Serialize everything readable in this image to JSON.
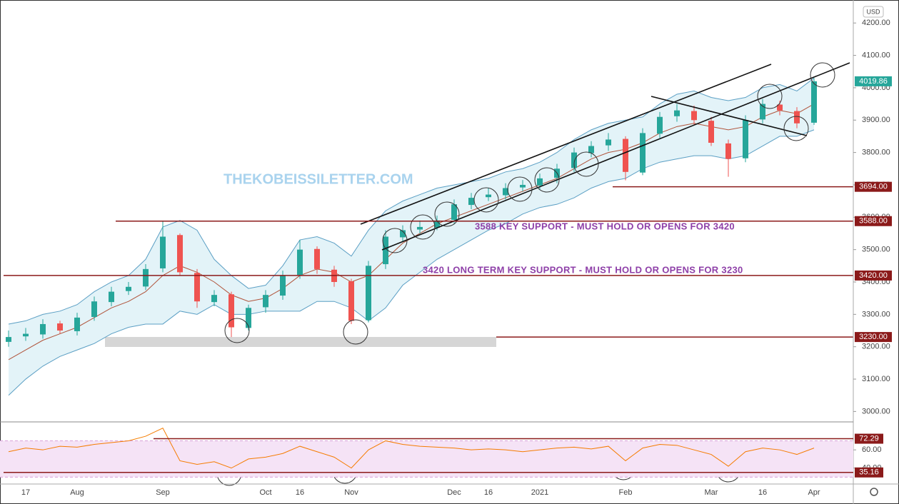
{
  "chart_data": {
    "type": "candlestick",
    "currency": "USD",
    "watermark": "THEKOBEISSILETTER.COM",
    "categories": [
      null,
      "17",
      null,
      null,
      "Aug",
      null,
      null,
      null,
      null,
      "Sep",
      null,
      null,
      null,
      null,
      null,
      "Oct",
      null,
      "16",
      null,
      null,
      "Nov",
      null,
      null,
      null,
      null,
      null,
      "Dec",
      null,
      "16",
      null,
      null,
      "2021",
      null,
      null,
      null,
      null,
      "Feb",
      null,
      null,
      null,
      null,
      "Mar",
      null,
      null,
      "16",
      null,
      null,
      "Apr"
    ],
    "open": [
      3215,
      3232,
      3238,
      3272,
      3248,
      3292,
      3338,
      3372,
      3386,
      3442,
      3545,
      3428,
      3338,
      3362,
      3258,
      3322,
      3358,
      3422,
      3502,
      3438,
      3402,
      3282,
      3455,
      3538,
      3562,
      3568,
      3592,
      3638,
      3662,
      3668,
      3692,
      3698,
      3722,
      3752,
      3798,
      3822,
      3842,
      3738,
      3858,
      3912,
      3928,
      3898,
      3828,
      3782,
      3902,
      3948,
      3928,
      3892
    ],
    "high": [
      3250,
      3258,
      3285,
      3280,
      3305,
      3355,
      3385,
      3400,
      3455,
      3588,
      3550,
      3440,
      3375,
      3370,
      3330,
      3375,
      3435,
      3530,
      3510,
      3450,
      3410,
      3465,
      3560,
      3575,
      3590,
      3605,
      3655,
      3675,
      3690,
      3705,
      3715,
      3735,
      3765,
      3815,
      3835,
      3860,
      3850,
      3875,
      3925,
      3950,
      3945,
      3910,
      3840,
      3915,
      3965,
      3960,
      3940,
      4030
    ],
    "low": [
      3200,
      3218,
      3225,
      3240,
      3235,
      3280,
      3325,
      3360,
      3375,
      3430,
      3420,
      3320,
      3325,
      3230,
      3250,
      3305,
      3345,
      3410,
      3425,
      3385,
      3270,
      3275,
      3440,
      3525,
      3550,
      3560,
      3580,
      3625,
      3650,
      3655,
      3680,
      3685,
      3705,
      3740,
      3785,
      3805,
      3714,
      3730,
      3845,
      3895,
      3885,
      3820,
      3725,
      3770,
      3890,
      3915,
      3875,
      3885
    ],
    "close": [
      3230,
      3240,
      3270,
      3250,
      3290,
      3340,
      3370,
      3385,
      3440,
      3540,
      3430,
      3340,
      3360,
      3260,
      3320,
      3360,
      3420,
      3500,
      3440,
      3400,
      3280,
      3450,
      3540,
      3560,
      3570,
      3590,
      3640,
      3660,
      3670,
      3690,
      3700,
      3720,
      3750,
      3800,
      3820,
      3840,
      3740,
      3860,
      3910,
      3930,
      3900,
      3830,
      3780,
      3900,
      3950,
      3930,
      3890,
      4019.86
    ],
    "up_color": "#26a69a",
    "down_color": "#ef5350",
    "bollinger": {
      "upper": [
        3270,
        3280,
        3300,
        3310,
        3330,
        3370,
        3400,
        3420,
        3470,
        3570,
        3590,
        3560,
        3470,
        3420,
        3380,
        3390,
        3450,
        3530,
        3540,
        3520,
        3480,
        3560,
        3620,
        3650,
        3670,
        3690,
        3700,
        3710,
        3720,
        3740,
        3750,
        3770,
        3800,
        3840,
        3870,
        3890,
        3900,
        3910,
        3950,
        3980,
        3990,
        3970,
        3960,
        3970,
        4000,
        4010,
        3990,
        4030
      ],
      "middle": [
        3160,
        3190,
        3220,
        3240,
        3260,
        3290,
        3320,
        3340,
        3370,
        3420,
        3450,
        3430,
        3400,
        3360,
        3340,
        3350,
        3380,
        3420,
        3440,
        3430,
        3400,
        3420,
        3470,
        3520,
        3550,
        3580,
        3600,
        3620,
        3640,
        3660,
        3680,
        3700,
        3720,
        3750,
        3780,
        3800,
        3810,
        3830,
        3860,
        3880,
        3890,
        3880,
        3870,
        3880,
        3910,
        3930,
        3920,
        3950
      ],
      "lower": [
        3050,
        3100,
        3140,
        3170,
        3190,
        3210,
        3240,
        3260,
        3270,
        3270,
        3310,
        3300,
        3330,
        3300,
        3300,
        3310,
        3310,
        3310,
        3340,
        3340,
        3320,
        3280,
        3320,
        3390,
        3430,
        3470,
        3500,
        3530,
        3560,
        3580,
        3610,
        3630,
        3640,
        3660,
        3690,
        3710,
        3720,
        3750,
        3770,
        3780,
        3790,
        3790,
        3780,
        3790,
        3820,
        3850,
        3850,
        3870
      ],
      "band_color": "#5b9fc4",
      "fill": "#e3f3f8",
      "middle_color": "#b0533a"
    },
    "ylim": [
      2970,
      4260
    ],
    "yticks": [
      {
        "value": 3000,
        "label": "3000.00"
      },
      {
        "value": 3100,
        "label": "3100.00"
      },
      {
        "value": 3200,
        "label": "3200.00"
      },
      {
        "value": 3300,
        "label": "3300.00"
      },
      {
        "value": 3400,
        "label": "3400.00"
      },
      {
        "value": 3500,
        "label": "3500.00"
      },
      {
        "value": 3600,
        "label": "3600.00"
      },
      {
        "value": 3700,
        "label": "3700.00"
      },
      {
        "value": 3800,
        "label": "3800.00"
      },
      {
        "value": 3900,
        "label": "3900.00"
      },
      {
        "value": 4000,
        "label": "4000.00"
      },
      {
        "value": 4100,
        "label": "4100.00"
      },
      {
        "value": 4200,
        "label": "4200.00"
      }
    ],
    "levels": [
      {
        "value": 3694,
        "label": "3694.00"
      },
      {
        "value": 3588,
        "label": "3588.00"
      },
      {
        "value": 3420,
        "label": "3420.00"
      },
      {
        "value": 3230,
        "label": "3230.00"
      }
    ],
    "level_color": "#8b1a1a",
    "annotations": [
      "3588 KEY SUPPORT - MUST HOLD OR OPENS FOR 3420",
      "3420 LONG TERM KEY SUPPORT - MUST HOLD OR OPENS FOR 3230"
    ],
    "rsi": {
      "values": [
        58,
        62,
        60,
        64,
        63,
        66,
        68,
        70,
        75,
        84,
        48,
        44,
        47,
        40,
        50,
        52,
        56,
        64,
        58,
        52,
        40,
        60,
        70,
        66,
        64,
        63,
        62,
        60,
        61,
        60,
        58,
        60,
        62,
        63,
        61,
        64,
        48,
        62,
        66,
        65,
        60,
        55,
        42,
        58,
        62,
        60,
        55,
        62
      ],
      "color": "#f57c00",
      "ylim": [
        24,
        90
      ],
      "yticks": [
        {
          "value": 40,
          "label": "40.00"
        },
        {
          "value": 60,
          "label": "60.00"
        }
      ],
      "band": [
        30,
        70
      ],
      "band_color": "#f5e3f6",
      "levels": [
        72.29,
        35.16
      ]
    }
  }
}
